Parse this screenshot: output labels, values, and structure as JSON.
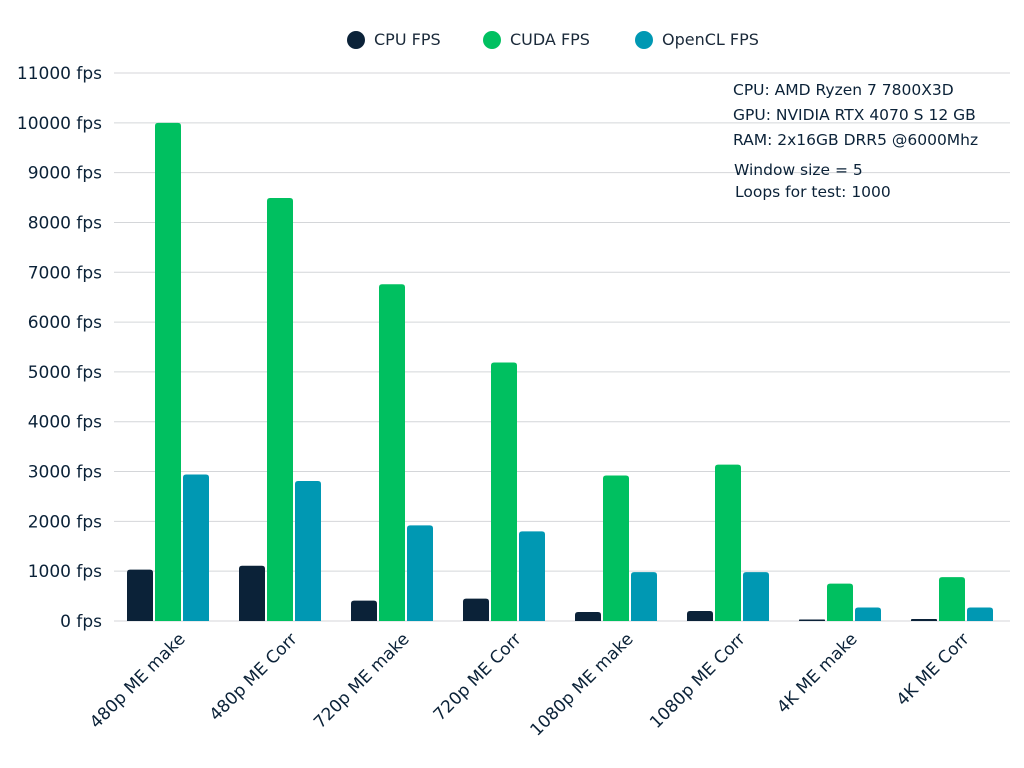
{
  "chart_data": {
    "type": "bar",
    "title": "",
    "xlabel": "",
    "ylabel": "",
    "ylim": [
      0,
      11000
    ],
    "y_ticks": [
      0,
      1000,
      2000,
      3000,
      4000,
      5000,
      6000,
      7000,
      8000,
      9000,
      10000,
      11000
    ],
    "y_tick_labels": [
      "0 fps",
      "1000 fps",
      "2000 fps",
      "3000 fps",
      "4000 fps",
      "5000 fps",
      "6000 fps",
      "7000 fps",
      "8000 fps",
      "9000 fps",
      "10000 fps",
      "11000 fps"
    ],
    "grid": true,
    "legend_position": "top-center",
    "categories": [
      "480p ME make",
      "480p ME Corr",
      "720p ME make",
      "720p ME Corr",
      "1080p ME make",
      "1080p ME Corr",
      "4K ME make",
      "4K ME Corr"
    ],
    "series": [
      {
        "name": "CPU FPS",
        "color": "#0b2238",
        "values": [
          1030,
          1110,
          410,
          450,
          180,
          200,
          30,
          40
        ]
      },
      {
        "name": "CUDA FPS",
        "color": "#00c060",
        "values": [
          10000,
          8490,
          6760,
          5190,
          2920,
          3140,
          750,
          880
        ]
      },
      {
        "name": "OpenCL FPS",
        "color": "#0098b3",
        "values": [
          2940,
          2810,
          1920,
          1800,
          980,
          980,
          270,
          270
        ]
      }
    ],
    "annotations": [
      "CPU: AMD Ryzen 7 7800X3D",
      "GPU: NVIDIA RTX 4070 S 12 GB",
      "RAM: 2x16GB DRR5 @6000Mhz",
      "Window size = 5",
      "Loops for test: 1000"
    ]
  }
}
